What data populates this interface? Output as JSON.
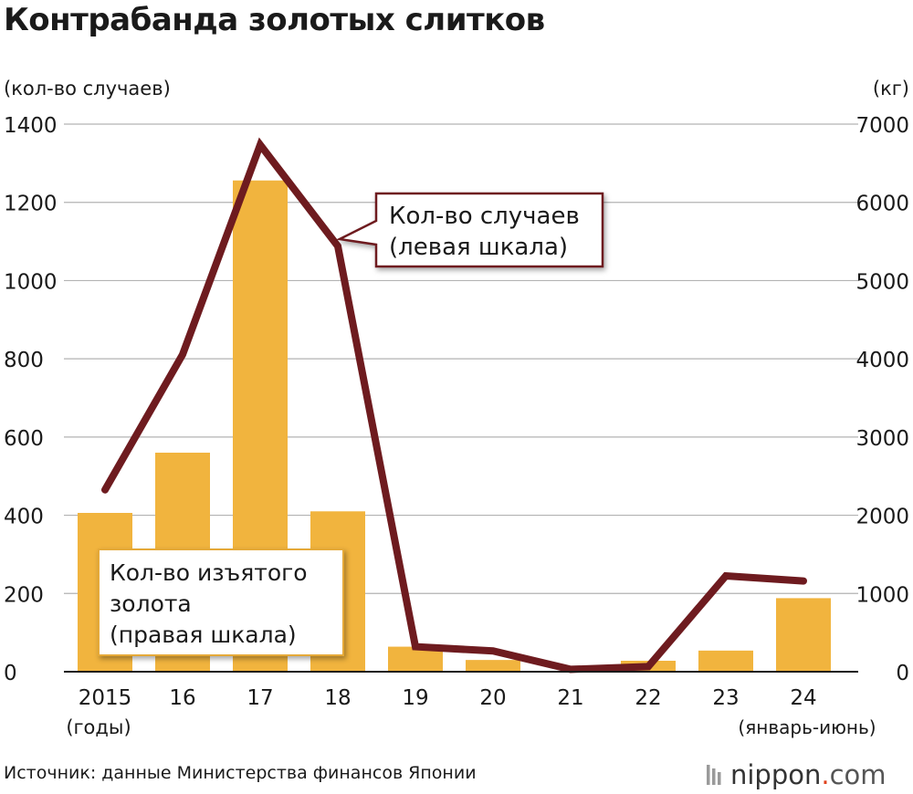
{
  "chart_data": {
    "type": "bar+line",
    "title": "Контрабанда золотых слитков",
    "y_left_label": "(кол-во случаев)",
    "y_right_label": "(кг)",
    "y_left_lim": [
      0,
      1400
    ],
    "y_right_lim": [
      0,
      7000
    ],
    "y_left_ticks": [
      "0",
      "200",
      "400",
      "600",
      "800",
      "1000",
      "1200",
      "1400"
    ],
    "y_right_ticks": [
      "0",
      "1000",
      "2000",
      "3000",
      "4000",
      "5000",
      "6000",
      "7000"
    ],
    "categories": [
      "2015",
      "16",
      "17",
      "18",
      "19",
      "20",
      "21",
      "22",
      "23",
      "24"
    ],
    "x_first_note": "(годы)",
    "x_last_note": "(январь-июнь)",
    "grid": true,
    "series": [
      {
        "name": "Кол-во изъятого золота (правая шкала)",
        "kind": "bar",
        "axis": "right",
        "values": [
          2030,
          2800,
          6280,
          2050,
          320,
          150,
          10,
          140,
          270,
          940
        ]
      },
      {
        "name": "Кол-во случаев (левая шкала)",
        "kind": "line",
        "axis": "left",
        "values": [
          465,
          811,
          1347,
          1088,
          64,
          53,
          6,
          13,
          245,
          232
        ]
      }
    ],
    "callouts": {
      "line_label_1": "Кол-во случаев",
      "line_label_2": "(левая шкала)",
      "bar_label_1": "Кол-во изъятого",
      "bar_label_2": "золота",
      "bar_label_3": "(правая шкала)"
    },
    "colors": {
      "bar": "#f1b43e",
      "line": "#6e1b1f",
      "grid": "#b3b3b3"
    }
  },
  "source": "Источник: данные Министерства финансов Японии",
  "logo": {
    "main": "nippon",
    "dot": ".",
    "suffix": "com",
    "dot_color": "#e0431e"
  }
}
